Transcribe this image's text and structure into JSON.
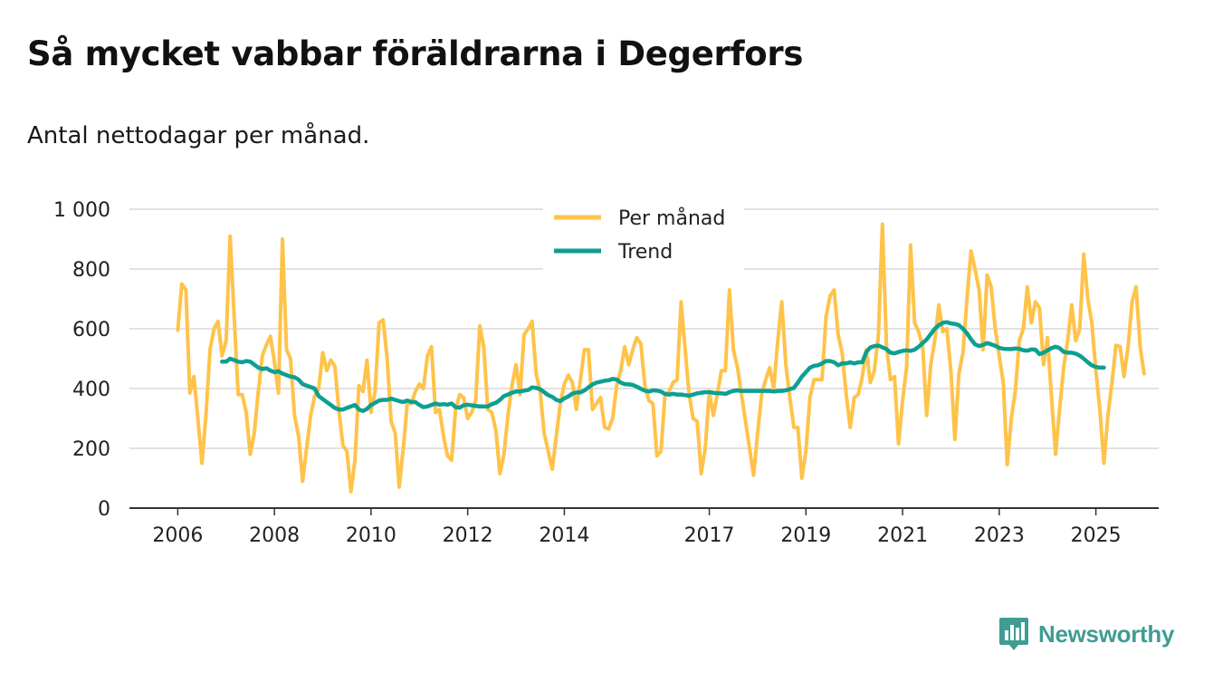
{
  "title": "Så mycket vabbar föräldrarna i Degerfors",
  "subtitle": "Antal nettodagar per månad.",
  "brand": {
    "name": "Newsworthy",
    "icon": "newsworthy-logo-icon",
    "color": "#3f9c93"
  },
  "colors": {
    "monthly": "#ffc34a",
    "trend": "#0e9f91",
    "grid": "#d9d9d9",
    "axis": "#333333"
  },
  "chart_data": {
    "type": "line",
    "title": "Så mycket vabbar föräldrarna i Degerfors",
    "subtitle": "Antal nettodagar per månad.",
    "xlabel": "",
    "ylabel": "",
    "ylim": [
      0,
      1000
    ],
    "xlim": [
      2005.0,
      2026.3
    ],
    "yticks": [
      0,
      200,
      400,
      600,
      800,
      1000
    ],
    "ytick_labels": [
      "0",
      "200",
      "400",
      "600",
      "800",
      "1 000"
    ],
    "xticks": [
      2006,
      2008,
      2010,
      2012,
      2014,
      2017,
      2019,
      2021,
      2023,
      2025
    ],
    "xtick_labels": [
      "2006",
      "2008",
      "2010",
      "2012",
      "2014",
      "2017",
      "2019",
      "2021",
      "2023",
      "2025"
    ],
    "grid": true,
    "legend_position": "top-center",
    "series": [
      {
        "name": "Per månad",
        "color": "#ffc34a",
        "start": 2006.0,
        "step": 0.08333,
        "values": [
          595,
          750,
          730,
          385,
          440,
          300,
          150,
          310,
          530,
          600,
          625,
          510,
          560,
          910,
          640,
          380,
          380,
          320,
          180,
          250,
          390,
          510,
          545,
          575,
          490,
          385,
          900,
          530,
          500,
          310,
          240,
          90,
          200,
          310,
          375,
          400,
          520,
          460,
          495,
          475,
          330,
          210,
          190,
          55,
          160,
          410,
          390,
          495,
          320,
          390,
          620,
          630,
          500,
          290,
          250,
          70,
          200,
          350,
          350,
          390,
          415,
          400,
          510,
          540,
          320,
          330,
          240,
          175,
          160,
          330,
          380,
          370,
          300,
          320,
          360,
          610,
          540,
          330,
          320,
          260,
          115,
          180,
          310,
          410,
          480,
          380,
          580,
          600,
          625,
          450,
          390,
          250,
          190,
          130,
          240,
          350,
          415,
          445,
          420,
          330,
          430,
          530,
          530,
          330,
          350,
          370,
          270,
          265,
          300,
          410,
          460,
          540,
          480,
          530,
          570,
          550,
          410,
          360,
          350,
          175,
          190,
          380,
          390,
          420,
          430,
          690,
          530,
          380,
          300,
          290,
          115,
          200,
          390,
          310,
          380,
          460,
          460,
          730,
          530,
          470,
          380,
          290,
          200,
          110,
          250,
          380,
          430,
          470,
          400,
          560,
          690,
          480,
          370,
          270,
          270,
          100,
          190,
          370,
          430,
          430,
          430,
          640,
          710,
          730,
          580,
          520,
          380,
          270,
          370,
          380,
          440,
          530,
          420,
          460,
          580,
          950,
          540,
          430,
          440,
          215,
          360,
          470,
          880,
          620,
          590,
          540,
          310,
          480,
          560,
          680,
          590,
          600,
          460,
          230,
          450,
          520,
          700,
          860,
          800,
          730,
          530,
          780,
          740,
          600,
          510,
          420,
          145,
          300,
          390,
          560,
          600,
          740,
          620,
          690,
          670,
          480,
          570,
          370,
          180,
          330,
          470,
          560,
          680,
          560,
          600,
          850,
          700,
          620,
          460,
          330,
          150,
          310,
          420,
          545,
          540,
          440,
          540,
          690,
          740,
          540,
          450
        ]
      },
      {
        "name": "Trend",
        "color": "#0e9f91",
        "start": 2006.917,
        "step": 0.08333,
        "values": [
          490,
          490,
          500,
          495,
          490,
          488,
          492,
          490,
          480,
          470,
          465,
          468,
          460,
          455,
          458,
          450,
          445,
          440,
          438,
          430,
          415,
          410,
          405,
          400,
          375,
          365,
          355,
          345,
          335,
          330,
          330,
          335,
          340,
          345,
          330,
          325,
          332,
          345,
          352,
          360,
          362,
          362,
          366,
          362,
          358,
          355,
          360,
          355,
          355,
          345,
          338,
          340,
          345,
          350,
          346,
          348,
          346,
          350,
          338,
          336,
          344,
          346,
          344,
          342,
          340,
          340,
          340,
          348,
          352,
          362,
          375,
          380,
          386,
          390,
          390,
          393,
          395,
          404,
          402,
          398,
          388,
          378,
          372,
          362,
          358,
          367,
          374,
          383,
          387,
          387,
          394,
          404,
          414,
          420,
          423,
          426,
          428,
          432,
          430,
          420,
          415,
          414,
          412,
          406,
          399,
          393,
          390,
          394,
          393,
          390,
          382,
          380,
          382,
          380,
          380,
          378,
          376,
          380,
          384,
          386,
          388,
          388,
          386,
          384,
          384,
          382,
          388,
          392,
          394,
          392,
          392,
          392,
          392,
          392,
          392,
          392,
          392,
          390,
          392,
          392,
          394,
          398,
          402,
          420,
          440,
          455,
          470,
          476,
          478,
          484,
          492,
          492,
          488,
          478,
          484,
          484,
          488,
          484,
          488,
          488,
          522,
          538,
          542,
          544,
          538,
          532,
          520,
          518,
          522,
          526,
          528,
          526,
          530,
          540,
          552,
          565,
          582,
          600,
          612,
          620,
          622,
          618,
          616,
          612,
          600,
          585,
          565,
          548,
          542,
          546,
          552,
          548,
          543,
          536,
          533,
          532,
          532,
          534,
          533,
          528,
          527,
          531,
          530,
          515,
          520,
          528,
          535,
          540,
          535,
          523,
          520,
          520,
          517,
          510,
          500,
          488,
          478,
          472,
          470,
          470
        ]
      }
    ]
  }
}
